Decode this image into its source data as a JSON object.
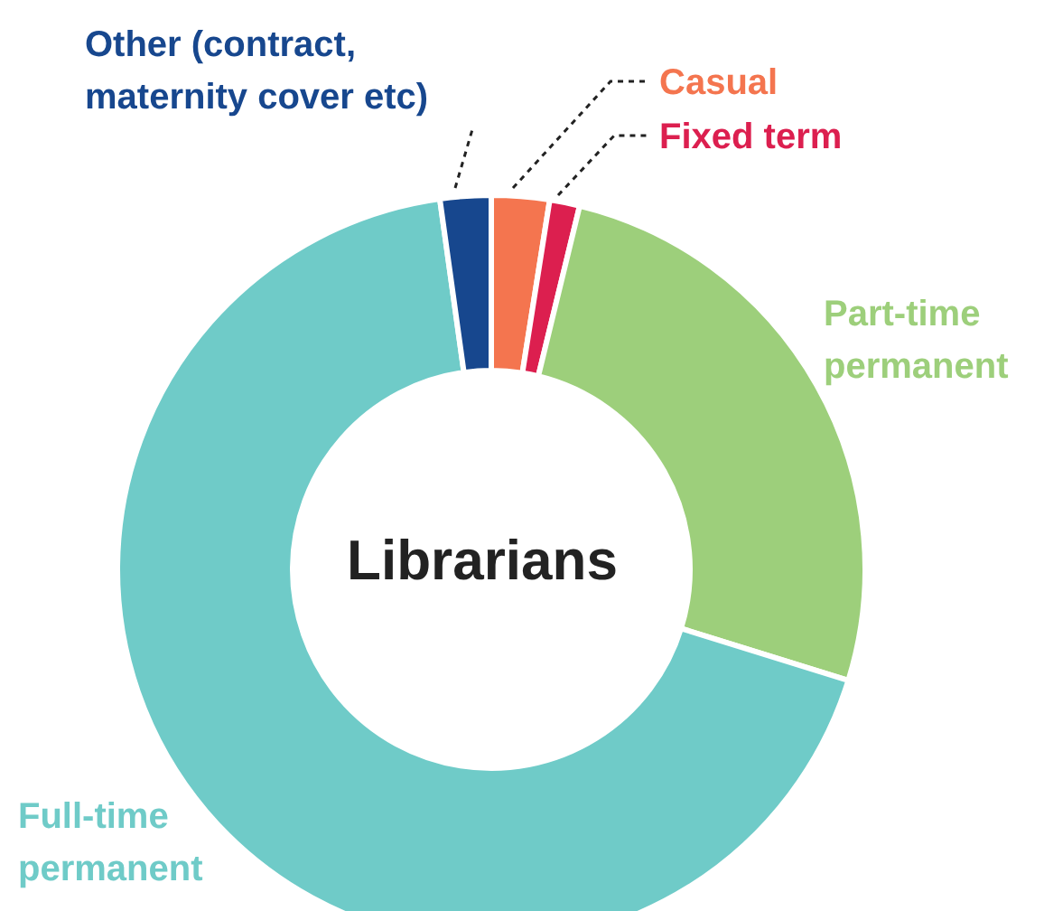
{
  "chart_data": {
    "type": "donut",
    "title": "Librarians",
    "categories": [
      "Casual",
      "Fixed term",
      "Part-time permanent",
      "Full-time permanent",
      "Other (contract, maternity cover etc)"
    ],
    "values": [
      2.5,
      1.3,
      26,
      68,
      2.2
    ],
    "colors": [
      "#f4754f",
      "#dc1f4f",
      "#9dcf7b",
      "#6fcbc8",
      "#17478e"
    ]
  }
}
